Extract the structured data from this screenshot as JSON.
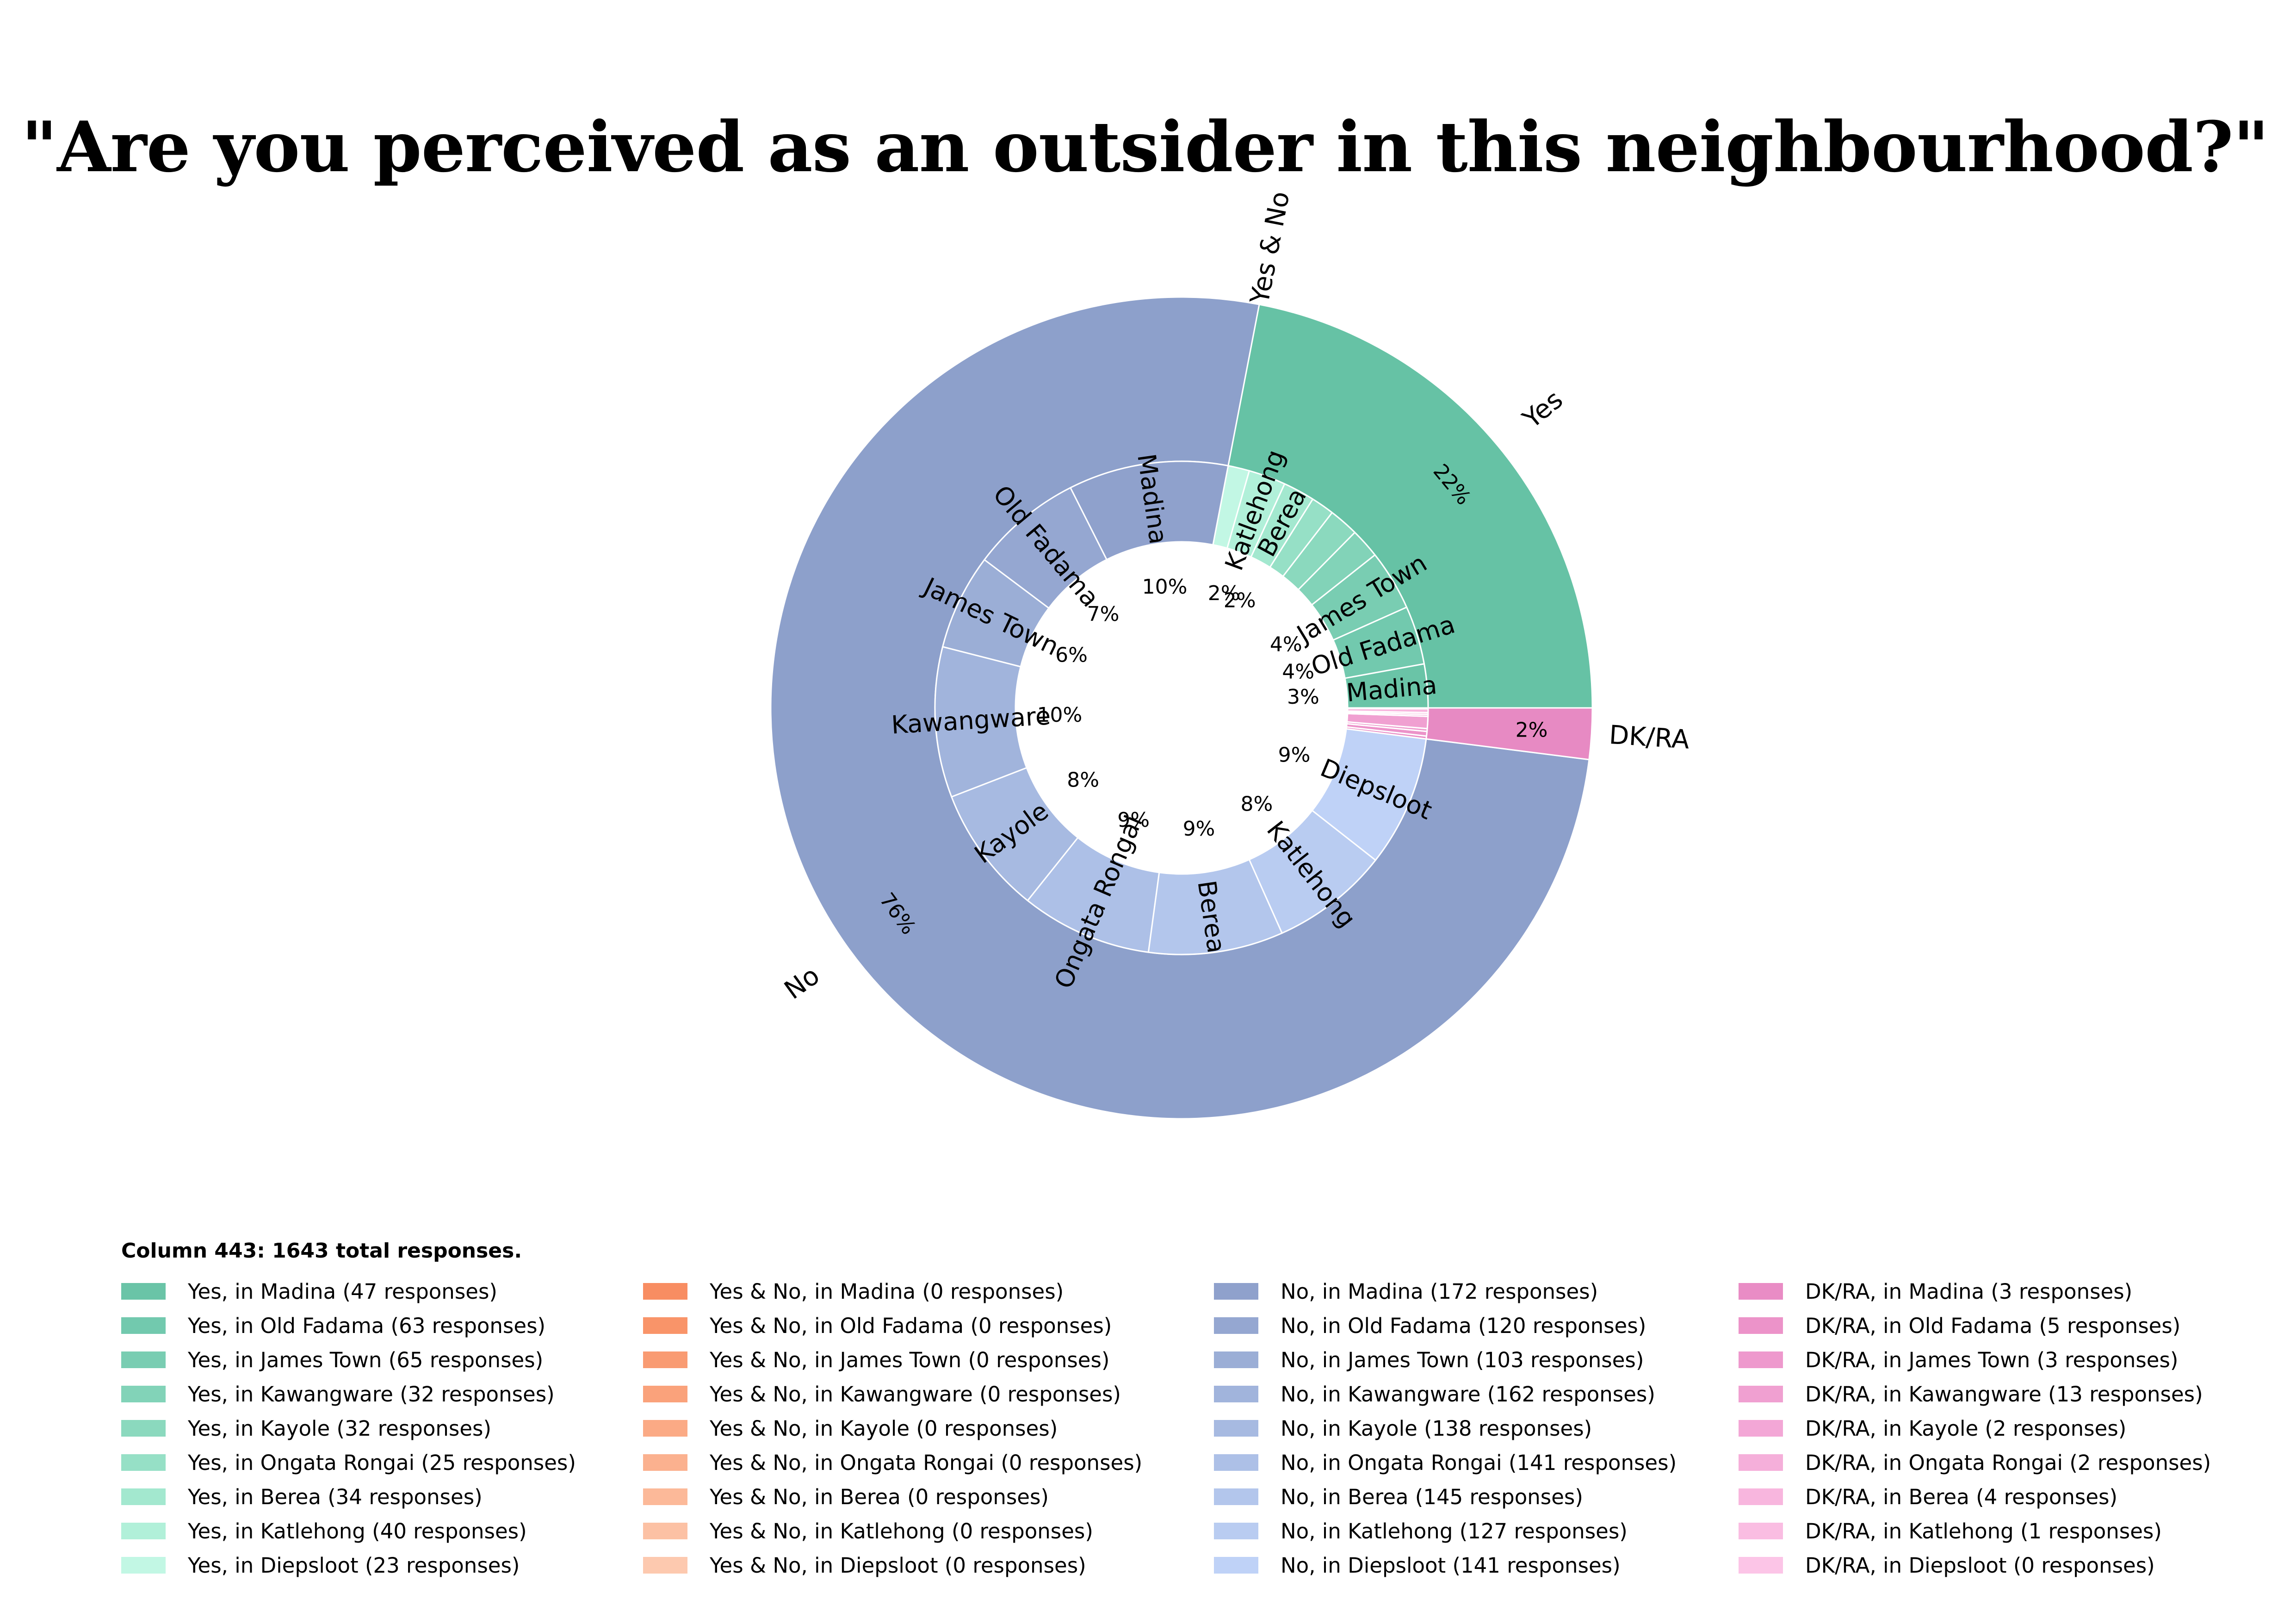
{
  "chart_data": {
    "type": "pie",
    "title": "\"Are you perceived as an outsider in this neighbourhood?\"",
    "total_label": "Column 443: 1643 total responses.",
    "outer": [
      {
        "name": "Yes",
        "value": 361,
        "pct_label": "22%",
        "color": "#66c2a5"
      },
      {
        "name": "Yes & No",
        "value": 0,
        "pct_label": "",
        "color": "#fc8d62"
      },
      {
        "name": "No",
        "value": 1249,
        "pct_label": "76%",
        "color": "#8da0cb"
      },
      {
        "name": "DK/RA",
        "value": 33,
        "pct_label": "2%",
        "color": "#e78ac3"
      }
    ],
    "inner": [
      {
        "group": "Yes",
        "name": "Madina",
        "value": 47,
        "pct_label": "3%",
        "color": "#6ac4a7"
      },
      {
        "group": "Yes",
        "name": "Old Fadama",
        "value": 63,
        "pct_label": "4%",
        "color": "#72c9ae"
      },
      {
        "group": "Yes",
        "name": "James Town",
        "value": 65,
        "pct_label": "4%",
        "color": "#79cdb2"
      },
      {
        "group": "Yes",
        "name": "",
        "value": 32,
        "pct_label": "",
        "color": "#82d3b8"
      },
      {
        "group": "Yes",
        "name": "",
        "value": 32,
        "pct_label": "",
        "color": "#8bd9be"
      },
      {
        "group": "Yes",
        "name": "",
        "value": 25,
        "pct_label": "",
        "color": "#96e0c6"
      },
      {
        "group": "Yes",
        "name": "Berea",
        "value": 34,
        "pct_label": "2%",
        "color": "#a3e8cf"
      },
      {
        "group": "Yes",
        "name": "Katlehong",
        "value": 40,
        "pct_label": "2%",
        "color": "#b1f0d9"
      },
      {
        "group": "Yes",
        "name": "",
        "value": 23,
        "pct_label": "",
        "color": "#c2f7e4"
      },
      {
        "group": "No",
        "name": "Madina",
        "value": 172,
        "pct_label": "10%",
        "color": "#8fa1cc"
      },
      {
        "group": "No",
        "name": "Old Fadama",
        "value": 120,
        "pct_label": "7%",
        "color": "#95a7d1"
      },
      {
        "group": "No",
        "name": "James Town",
        "value": 103,
        "pct_label": "6%",
        "color": "#9baed6"
      },
      {
        "group": "No",
        "name": "Kawangware",
        "value": 162,
        "pct_label": "10%",
        "color": "#a1b4dc"
      },
      {
        "group": "No",
        "name": "Kayole",
        "value": 138,
        "pct_label": "8%",
        "color": "#a7bae1"
      },
      {
        "group": "No",
        "name": "Ongata Rongai",
        "value": 141,
        "pct_label": "9%",
        "color": "#adc0e7"
      },
      {
        "group": "No",
        "name": "Berea",
        "value": 145,
        "pct_label": "9%",
        "color": "#b3c6ec"
      },
      {
        "group": "No",
        "name": "Katlehong",
        "value": 127,
        "pct_label": "8%",
        "color": "#b9ccf1"
      },
      {
        "group": "No",
        "name": "Diepsloot",
        "value": 141,
        "pct_label": "9%",
        "color": "#bfd2f7"
      },
      {
        "group": "DK/RA",
        "name": "",
        "value": 3,
        "pct_label": "",
        "color": "#e98cc5"
      },
      {
        "group": "DK/RA",
        "name": "",
        "value": 5,
        "pct_label": "",
        "color": "#ec93c9"
      },
      {
        "group": "DK/RA",
        "name": "",
        "value": 3,
        "pct_label": "",
        "color": "#ee99cd"
      },
      {
        "group": "DK/RA",
        "name": "",
        "value": 13,
        "pct_label": "",
        "color": "#f0a0d1"
      },
      {
        "group": "DK/RA",
        "name": "",
        "value": 2,
        "pct_label": "",
        "color": "#f3a7d6"
      },
      {
        "group": "DK/RA",
        "name": "",
        "value": 2,
        "pct_label": "",
        "color": "#f5afda"
      },
      {
        "group": "DK/RA",
        "name": "",
        "value": 4,
        "pct_label": "",
        "color": "#f8b6de"
      },
      {
        "group": "DK/RA",
        "name": "",
        "value": 1,
        "pct_label": "",
        "color": "#fabde2"
      },
      {
        "group": "DK/RA",
        "name": "",
        "value": 0,
        "pct_label": "",
        "color": "#fcc5e7"
      }
    ],
    "legend": [
      [
        {
          "label": "Yes, in Madina (47 responses)",
          "color": "#6ac4a7"
        },
        {
          "label": "Yes, in Old Fadama (63 responses)",
          "color": "#72c9ae"
        },
        {
          "label": "Yes, in James Town (65 responses)",
          "color": "#79cdb2"
        },
        {
          "label": "Yes, in Kawangware (32 responses)",
          "color": "#82d3b8"
        },
        {
          "label": "Yes, in Kayole (32 responses)",
          "color": "#8bd9be"
        },
        {
          "label": "Yes, in Ongata Rongai (25 responses)",
          "color": "#96e0c6"
        },
        {
          "label": "Yes, in Berea (34 responses)",
          "color": "#a3e8cf"
        },
        {
          "label": "Yes, in Katlehong (40 responses)",
          "color": "#b1f0d9"
        },
        {
          "label": "Yes, in Diepsloot (23 responses)",
          "color": "#c2f7e4"
        }
      ],
      [
        {
          "label": "Yes & No, in Madina (0 responses)",
          "color": "#f88d62"
        },
        {
          "label": "Yes & No, in Old Fadama (0 responses)",
          "color": "#f99469"
        },
        {
          "label": "Yes & No, in James Town (0 responses)",
          "color": "#f99b72"
        },
        {
          "label": "Yes & No, in Kawangware (0 responses)",
          "color": "#faa27b"
        },
        {
          "label": "Yes & No, in Kayole (0 responses)",
          "color": "#fbaa85"
        },
        {
          "label": "Yes & No, in Ongata Rongai (0 responses)",
          "color": "#fbb18f"
        },
        {
          "label": "Yes & No, in Berea (0 responses)",
          "color": "#fcb999"
        },
        {
          "label": "Yes & No, in Katlehong (0 responses)",
          "color": "#fcc1a4"
        },
        {
          "label": "Yes & No, in Diepsloot (0 responses)",
          "color": "#fdc9af"
        }
      ],
      [
        {
          "label": "No, in Madina (172 responses)",
          "color": "#8fa1cc"
        },
        {
          "label": "No, in Old Fadama (120 responses)",
          "color": "#95a7d1"
        },
        {
          "label": "No, in James Town (103 responses)",
          "color": "#9baed6"
        },
        {
          "label": "No, in Kawangware (162 responses)",
          "color": "#a1b4dc"
        },
        {
          "label": "No, in Kayole (138 responses)",
          "color": "#a7bae1"
        },
        {
          "label": "No, in Ongata Rongai (141 responses)",
          "color": "#adc0e7"
        },
        {
          "label": "No, in Berea (145 responses)",
          "color": "#b3c6ec"
        },
        {
          "label": "No, in Katlehong (127 responses)",
          "color": "#b9ccf1"
        },
        {
          "label": "No, in Diepsloot (141 responses)",
          "color": "#bfd2f7"
        }
      ],
      [
        {
          "label": "DK/RA, in Madina (3 responses)",
          "color": "#e98cc5"
        },
        {
          "label": "DK/RA, in Old Fadama (5 responses)",
          "color": "#ec93c9"
        },
        {
          "label": "DK/RA, in James Town (3 responses)",
          "color": "#ee99cd"
        },
        {
          "label": "DK/RA, in Kawangware (13 responses)",
          "color": "#f0a0d1"
        },
        {
          "label": "DK/RA, in Kayole (2 responses)",
          "color": "#f3a7d6"
        },
        {
          "label": "DK/RA, in Ongata Rongai (2 responses)",
          "color": "#f5afda"
        },
        {
          "label": "DK/RA, in Berea (4 responses)",
          "color": "#f8b6de"
        },
        {
          "label": "DK/RA, in Katlehong (1 responses)",
          "color": "#fabde2"
        },
        {
          "label": "DK/RA, in Diepsloot (0 responses)",
          "color": "#fcc5e7"
        }
      ]
    ]
  }
}
